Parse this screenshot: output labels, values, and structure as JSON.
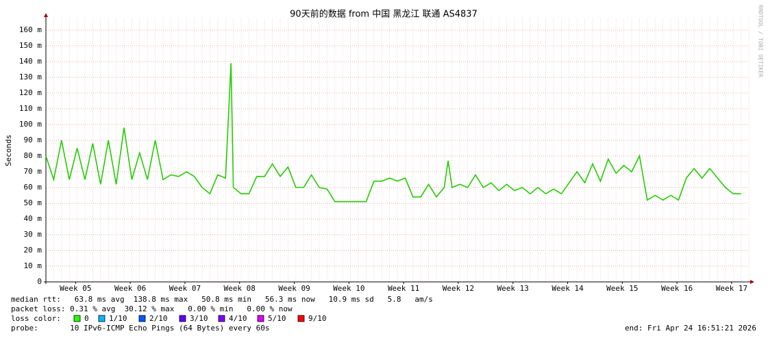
{
  "chart_data": {
    "type": "line",
    "title": "90天前的数据 from 中国 黑龙江 联通 AS4837",
    "ylabel": "Seconds",
    "watermark": "RRDTOOL / TOBI OETIKER",
    "grid": true,
    "xlim": [
      0,
      90
    ],
    "xticks": [
      {
        "value": 3.8,
        "label": "Week 05"
      },
      {
        "value": 10.8,
        "label": "Week 06"
      },
      {
        "value": 17.8,
        "label": "Week 07"
      },
      {
        "value": 24.8,
        "label": "Week 08"
      },
      {
        "value": 31.8,
        "label": "Week 09"
      },
      {
        "value": 38.8,
        "label": "Week 10"
      },
      {
        "value": 45.8,
        "label": "Week 11"
      },
      {
        "value": 52.8,
        "label": "Week 12"
      },
      {
        "value": 59.8,
        "label": "Week 13"
      },
      {
        "value": 66.8,
        "label": "Week 14"
      },
      {
        "value": 73.8,
        "label": "Week 15"
      },
      {
        "value": 80.8,
        "label": "Week 16"
      },
      {
        "value": 87.8,
        "label": "Week 17"
      }
    ],
    "ylim": [
      0,
      0.1674
    ],
    "yticks": [
      0,
      {
        "value": 0.01,
        "label": "10 m"
      },
      {
        "value": 0.02,
        "label": "20 m"
      },
      {
        "value": 0.03,
        "label": "30 m"
      },
      {
        "value": 0.04,
        "label": "40 m"
      },
      {
        "value": 0.05,
        "label": "50 m"
      },
      {
        "value": 0.06,
        "label": "60 m"
      },
      {
        "value": 0.07,
        "label": "70 m"
      },
      {
        "value": 0.08,
        "label": "80 m"
      },
      {
        "value": 0.09,
        "label": "90 m"
      },
      {
        "value": 0.1,
        "label": "100 m"
      },
      {
        "value": 0.11,
        "label": "110 m"
      },
      {
        "value": 0.12,
        "label": "120 m"
      },
      {
        "value": 0.13,
        "label": "130 m"
      },
      {
        "value": 0.14,
        "label": "140 m"
      },
      {
        "value": 0.15,
        "label": "150 m"
      },
      {
        "value": 0.16,
        "label": "160 m"
      }
    ],
    "series": [
      {
        "name": "median rtt",
        "color": "#22cc00",
        "x": [
          0,
          1,
          2,
          3,
          4,
          5,
          6,
          7,
          8,
          9,
          10,
          11,
          12,
          13,
          14,
          15,
          16,
          17,
          18,
          19,
          20,
          21,
          22,
          23,
          23.7,
          24,
          25,
          26,
          27,
          28,
          29,
          30,
          31,
          32,
          33,
          34,
          35,
          36,
          37,
          38,
          39,
          40,
          41,
          42,
          43,
          44,
          45,
          46,
          47,
          48,
          49,
          50,
          51,
          51.5,
          52,
          53,
          54,
          55,
          56,
          57,
          58,
          59,
          60,
          61,
          62,
          63,
          64,
          65,
          66,
          67,
          68,
          69,
          70,
          71,
          72,
          73,
          74,
          75,
          76,
          77,
          78,
          79,
          80,
          81,
          82,
          83,
          84,
          85,
          86,
          87,
          88,
          89
        ],
        "values": [
          0.08,
          0.065,
          0.09,
          0.065,
          0.085,
          0.065,
          0.088,
          0.062,
          0.09,
          0.062,
          0.098,
          0.065,
          0.082,
          0.065,
          0.09,
          0.065,
          0.068,
          0.067,
          0.07,
          0.067,
          0.06,
          0.056,
          0.068,
          0.066,
          0.139,
          0.06,
          0.056,
          0.056,
          0.067,
          0.067,
          0.075,
          0.067,
          0.073,
          0.06,
          0.06,
          0.068,
          0.06,
          0.059,
          0.051,
          0.051,
          0.051,
          0.051,
          0.051,
          0.064,
          0.064,
          0.066,
          0.064,
          0.066,
          0.054,
          0.054,
          0.062,
          0.054,
          0.06,
          0.077,
          0.06,
          0.062,
          0.06,
          0.068,
          0.06,
          0.063,
          0.058,
          0.062,
          0.058,
          0.06,
          0.056,
          0.06,
          0.056,
          0.059,
          0.056,
          0.063,
          0.07,
          0.063,
          0.075,
          0.064,
          0.078,
          0.069,
          0.074,
          0.07,
          0.08,
          0.052,
          0.055,
          0.052,
          0.055,
          0.052,
          0.066,
          0.072,
          0.066,
          0.072,
          0.066,
          0.06,
          0.056,
          0.056
        ]
      }
    ],
    "footer": {
      "median_rtt": "median rtt:   63.8 ms avg  138.8 ms max   50.8 ms min   56.3 ms now   10.9 ms sd   5.8   am/s",
      "packet_loss": "packet loss: 0.31 % avg  30.12 % max   0.00 % min   0.00 % now",
      "loss_color_label": "loss color:",
      "loss_colors": [
        {
          "label": "0",
          "color": "#26ff00"
        },
        {
          "label": "1/10",
          "color": "#00b8ff"
        },
        {
          "label": "2/10",
          "color": "#0059ff"
        },
        {
          "label": "3/10",
          "color": "#5e00ff"
        },
        {
          "label": "4/10",
          "color": "#7e00ff"
        },
        {
          "label": "5/10",
          "color": "#dd00ff"
        },
        {
          "label": "9/10",
          "color": "#ff0000"
        }
      ],
      "probe": "probe:       10 IPv6-ICMP Echo Pings (64 Bytes) every 60s",
      "end": "end: Fri Apr 24 16:51:21 2026"
    }
  }
}
